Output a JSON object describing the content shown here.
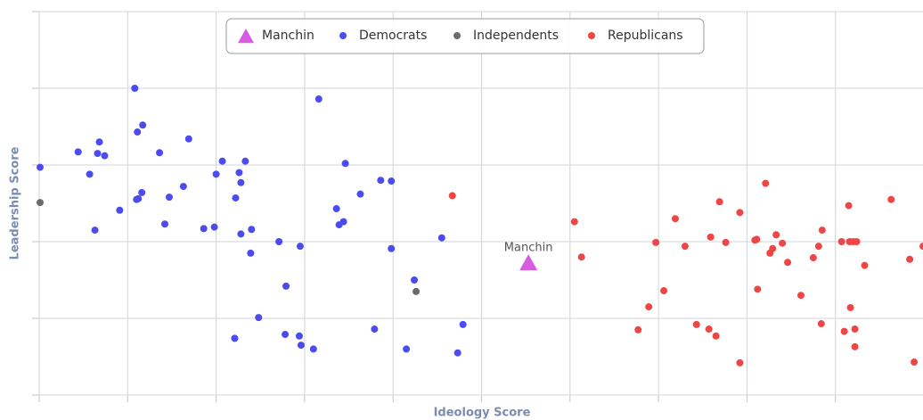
{
  "chart_data": {
    "type": "scatter",
    "x_label": "Ideology Score",
    "y_label": "Leadership Score",
    "xlim": [
      0,
      10
    ],
    "xticks": [
      0,
      1,
      2,
      3,
      4,
      5,
      6,
      7,
      8,
      9,
      10
    ],
    "ylim": [
      0,
      5
    ],
    "yticks": [
      0,
      1,
      2,
      3,
      4,
      5
    ],
    "grid": true,
    "legend": "top",
    "series": [
      {
        "name": "Manchin",
        "color": "#d85ce0",
        "marker": "triangle",
        "point_label": "Manchin",
        "x": [
          5.53
        ],
        "y": [
          1.72
        ]
      },
      {
        "name": "Democrats",
        "color": "#4b4bf0",
        "marker": "circle",
        "x": [
          0.01,
          0.44,
          0.57,
          0.63,
          0.66,
          0.68,
          0.74,
          0.91,
          1.08,
          1.1,
          1.11,
          1.12,
          1.16,
          1.17,
          1.36,
          1.42,
          1.47,
          1.63,
          1.69,
          1.86,
          1.98,
          2.0,
          2.07,
          2.22,
          2.26,
          2.28,
          2.28,
          2.33,
          2.4,
          2.39,
          2.48,
          2.21,
          2.71,
          2.79,
          2.78,
          2.95,
          2.94,
          2.96,
          3.1,
          3.16,
          3.36,
          3.39,
          3.44,
          3.46,
          3.63,
          3.79,
          3.86,
          3.98,
          3.98,
          4.15,
          4.24,
          4.55,
          4.73,
          4.79
        ],
        "y": [
          2.97,
          3.17,
          2.88,
          2.15,
          3.15,
          3.3,
          3.12,
          2.41,
          4.0,
          2.55,
          3.43,
          2.56,
          2.64,
          3.52,
          3.16,
          2.23,
          2.58,
          2.72,
          3.34,
          2.17,
          2.19,
          2.88,
          3.05,
          2.57,
          2.9,
          2.77,
          2.1,
          3.05,
          2.16,
          1.85,
          1.01,
          0.74,
          2.0,
          1.42,
          0.79,
          1.94,
          0.77,
          0.65,
          0.6,
          3.86,
          2.43,
          2.22,
          2.26,
          3.02,
          2.62,
          0.86,
          2.8,
          2.79,
          1.91,
          0.6,
          1.5,
          2.05,
          0.55,
          0.92
        ]
      },
      {
        "name": "Independents",
        "color": "#6b6b6b",
        "marker": "circle",
        "x": [
          0.01,
          4.26
        ],
        "y": [
          2.51,
          1.35
        ]
      },
      {
        "name": "Republicans",
        "color": "#f04545",
        "marker": "circle",
        "x": [
          4.67,
          6.05,
          6.13,
          6.77,
          6.89,
          6.97,
          7.06,
          7.19,
          7.3,
          7.43,
          7.57,
          7.59,
          7.65,
          7.69,
          7.76,
          7.92,
          7.92,
          8.09,
          8.11,
          8.12,
          8.21,
          8.26,
          8.29,
          8.33,
          8.4,
          8.46,
          8.61,
          8.75,
          8.81,
          8.85,
          8.84,
          9.07,
          9.1,
          9.15,
          9.16,
          9.17,
          9.2,
          9.22,
          9.24,
          9.22,
          9.33,
          9.63,
          9.84,
          9.89,
          9.99
        ],
        "y": [
          2.6,
          2.26,
          1.8,
          0.85,
          1.15,
          1.99,
          1.36,
          2.3,
          1.94,
          0.92,
          0.86,
          2.06,
          0.77,
          2.52,
          1.99,
          2.38,
          0.42,
          2.02,
          2.03,
          1.38,
          2.76,
          1.85,
          1.91,
          2.09,
          1.98,
          1.73,
          1.3,
          1.79,
          1.94,
          2.15,
          0.93,
          2.0,
          0.83,
          2.47,
          2.0,
          1.14,
          2.0,
          0.86,
          2.0,
          0.63,
          1.69,
          2.55,
          1.77,
          0.43,
          1.94
        ]
      }
    ]
  }
}
